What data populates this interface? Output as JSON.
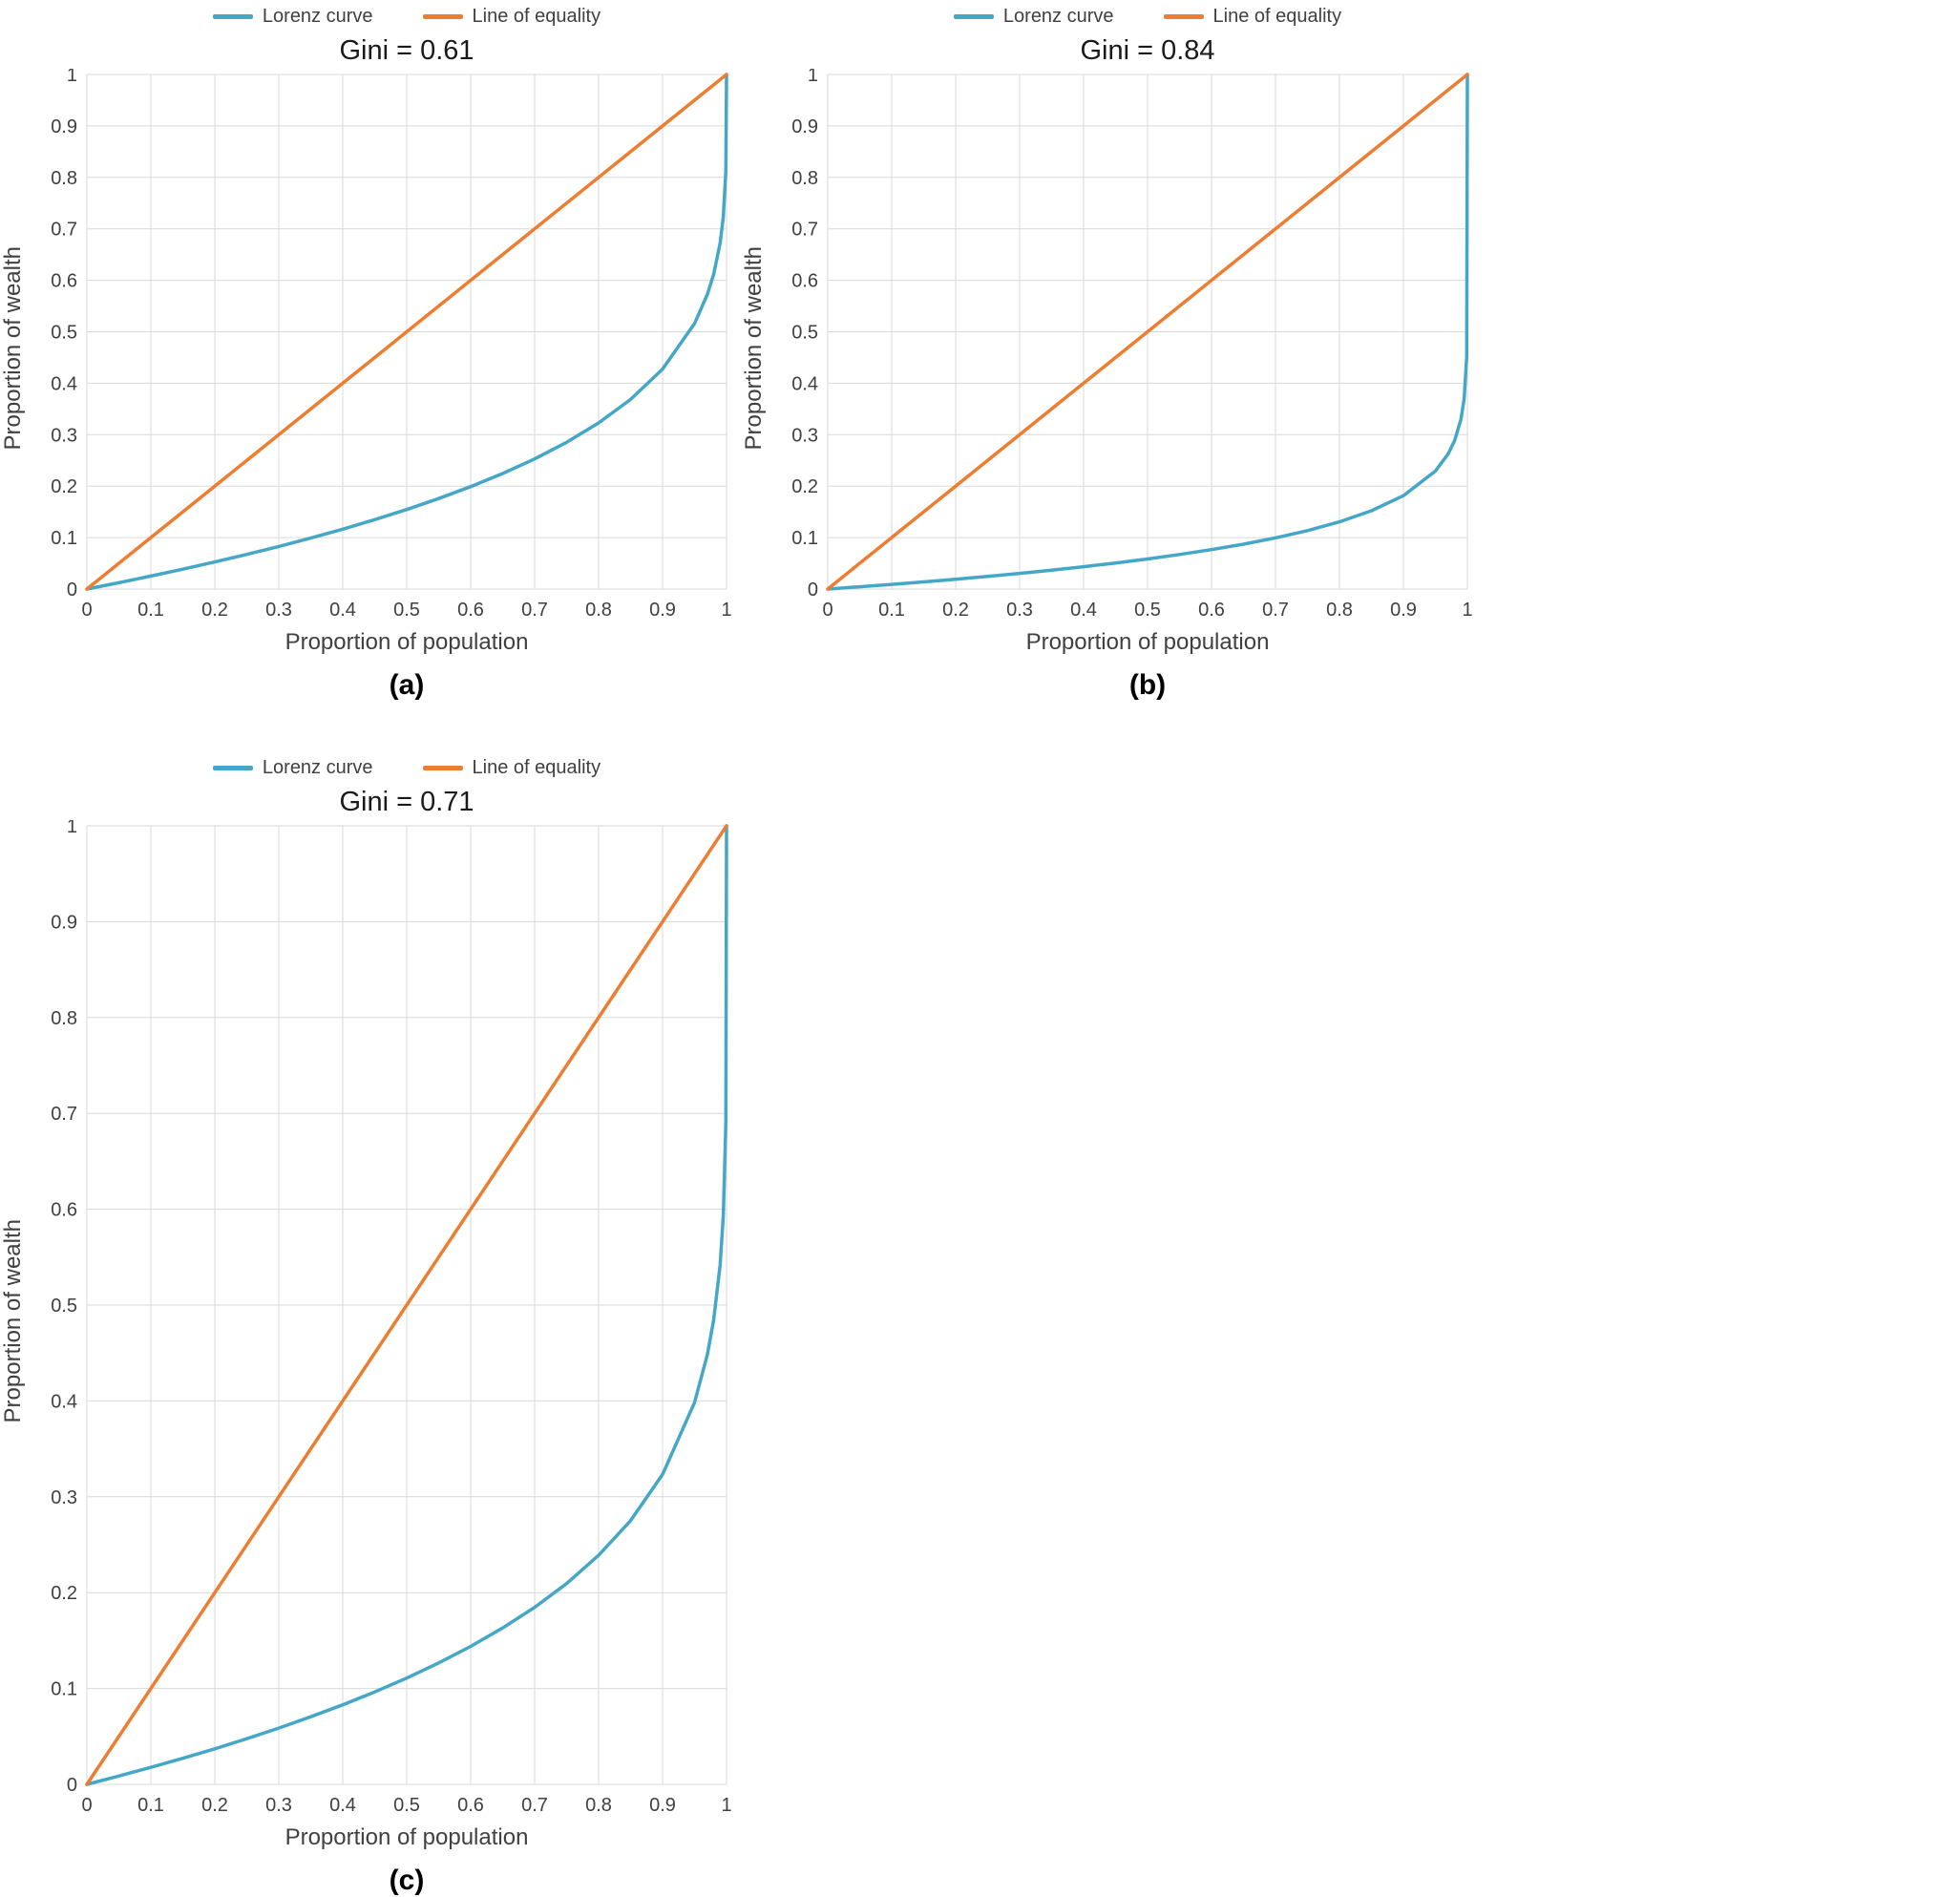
{
  "colors": {
    "lorenz": "#45A7C7",
    "equality": "#ED7D31",
    "gridline": "#D9D9D9",
    "axis_text": "#404040",
    "title_text": "#1A1A1A"
  },
  "chart_data": [
    {
      "id": "a",
      "type": "line",
      "title": "Gini = 0.61",
      "gini": 0.61,
      "caption": "(a)",
      "xlabel": "Proportion of population",
      "ylabel": "Proportion of wealth",
      "xlim": [
        0,
        1
      ],
      "ylim": [
        0,
        1
      ],
      "xticks": [
        "0",
        "0.1",
        "0.2",
        "0.3",
        "0.4",
        "0.5",
        "0.6",
        "0.7",
        "0.8",
        "0.9",
        "1"
      ],
      "yticks": [
        "0",
        "0.1",
        "0.2",
        "0.3",
        "0.4",
        "0.5",
        "0.6",
        "0.7",
        "0.8",
        "0.9",
        "1"
      ],
      "grid": true,
      "legend_position": "top",
      "series": [
        {
          "name": "Lorenz curve",
          "color": "#45A7C7",
          "x": [
            0,
            0.05,
            0.1,
            0.15,
            0.2,
            0.25,
            0.3,
            0.35,
            0.4,
            0.45,
            0.5,
            0.55,
            0.6,
            0.65,
            0.7,
            0.75,
            0.8,
            0.85,
            0.9,
            0.95,
            0.97,
            0.98,
            0.99,
            0.995,
            0.999,
            1
          ],
          "y": [
            0,
            0.0123,
            0.0252,
            0.0386,
            0.0526,
            0.0673,
            0.0828,
            0.0991,
            0.1164,
            0.1348,
            0.1545,
            0.1758,
            0.199,
            0.2245,
            0.2529,
            0.2852,
            0.3228,
            0.3684,
            0.4275,
            0.5159,
            0.5723,
            0.6123,
            0.6722,
            0.7229,
            0.8123,
            1
          ]
        },
        {
          "name": "Line of equality",
          "color": "#ED7D31",
          "x": [
            0,
            1
          ],
          "y": [
            0,
            1
          ]
        }
      ]
    },
    {
      "id": "b",
      "type": "line",
      "title": "Gini = 0.84",
      "gini": 0.84,
      "caption": "(b)",
      "xlabel": "Proportion of population",
      "ylabel": "Proportion of wealth",
      "xlim": [
        0,
        1
      ],
      "ylim": [
        0,
        1
      ],
      "xticks": [
        "0",
        "0.1",
        "0.2",
        "0.3",
        "0.4",
        "0.5",
        "0.6",
        "0.7",
        "0.8",
        "0.9",
        "1"
      ],
      "yticks": [
        "0",
        "0.1",
        "0.2",
        "0.3",
        "0.4",
        "0.5",
        "0.6",
        "0.7",
        "0.8",
        "0.9",
        "1"
      ],
      "grid": true,
      "legend_position": "top",
      "series": [
        {
          "name": "Lorenz curve",
          "color": "#45A7C7",
          "x": [
            0,
            0.05,
            0.1,
            0.15,
            0.2,
            0.25,
            0.3,
            0.35,
            0.4,
            0.45,
            0.5,
            0.55,
            0.6,
            0.65,
            0.7,
            0.75,
            0.8,
            0.85,
            0.9,
            0.95,
            0.97,
            0.98,
            0.99,
            0.995,
            0.999,
            1
          ],
          "y": [
            0,
            0.0045,
            0.0091,
            0.014,
            0.0192,
            0.0247,
            0.0305,
            0.0368,
            0.0434,
            0.0507,
            0.0585,
            0.0671,
            0.0766,
            0.0872,
            0.0994,
            0.1136,
            0.1306,
            0.1521,
            0.1815,
            0.2294,
            0.2628,
            0.2884,
            0.33,
            0.3692,
            0.4515,
            1
          ]
        },
        {
          "name": "Line of equality",
          "color": "#ED7D31",
          "x": [
            0,
            1
          ],
          "y": [
            0,
            1
          ]
        }
      ]
    },
    {
      "id": "c",
      "type": "line",
      "title": "Gini = 0.71",
      "gini": 0.71,
      "caption": "(c)",
      "xlabel": "Proportion of population",
      "ylabel": "Proportion of wealth",
      "xlim": [
        0,
        1
      ],
      "ylim": [
        0,
        1
      ],
      "xticks": [
        "0",
        "0.1",
        "0.2",
        "0.3",
        "0.4",
        "0.5",
        "0.6",
        "0.7",
        "0.8",
        "0.9",
        "1"
      ],
      "yticks": [
        "0",
        "0.1",
        "0.2",
        "0.3",
        "0.4",
        "0.5",
        "0.6",
        "0.7",
        "0.8",
        "0.9",
        "1"
      ],
      "grid": true,
      "legend_position": "top",
      "series": [
        {
          "name": "Lorenz curve",
          "color": "#45A7C7",
          "x": [
            0,
            0.05,
            0.1,
            0.15,
            0.2,
            0.25,
            0.3,
            0.35,
            0.4,
            0.45,
            0.5,
            0.55,
            0.6,
            0.65,
            0.7,
            0.75,
            0.8,
            0.85,
            0.9,
            0.95,
            0.97,
            0.98,
            0.99,
            0.995,
            0.999,
            1
          ],
          "y": [
            0,
            0.0087,
            0.0177,
            0.0272,
            0.0371,
            0.0476,
            0.0587,
            0.0705,
            0.083,
            0.0964,
            0.1109,
            0.1267,
            0.1439,
            0.1631,
            0.1847,
            0.2095,
            0.2389,
            0.2751,
            0.3233,
            0.3983,
            0.4483,
            0.4849,
            0.542,
            0.5928,
            0.6901,
            1
          ]
        },
        {
          "name": "Line of equality",
          "color": "#ED7D31",
          "x": [
            0,
            1
          ],
          "y": [
            0,
            1
          ]
        }
      ]
    }
  ]
}
